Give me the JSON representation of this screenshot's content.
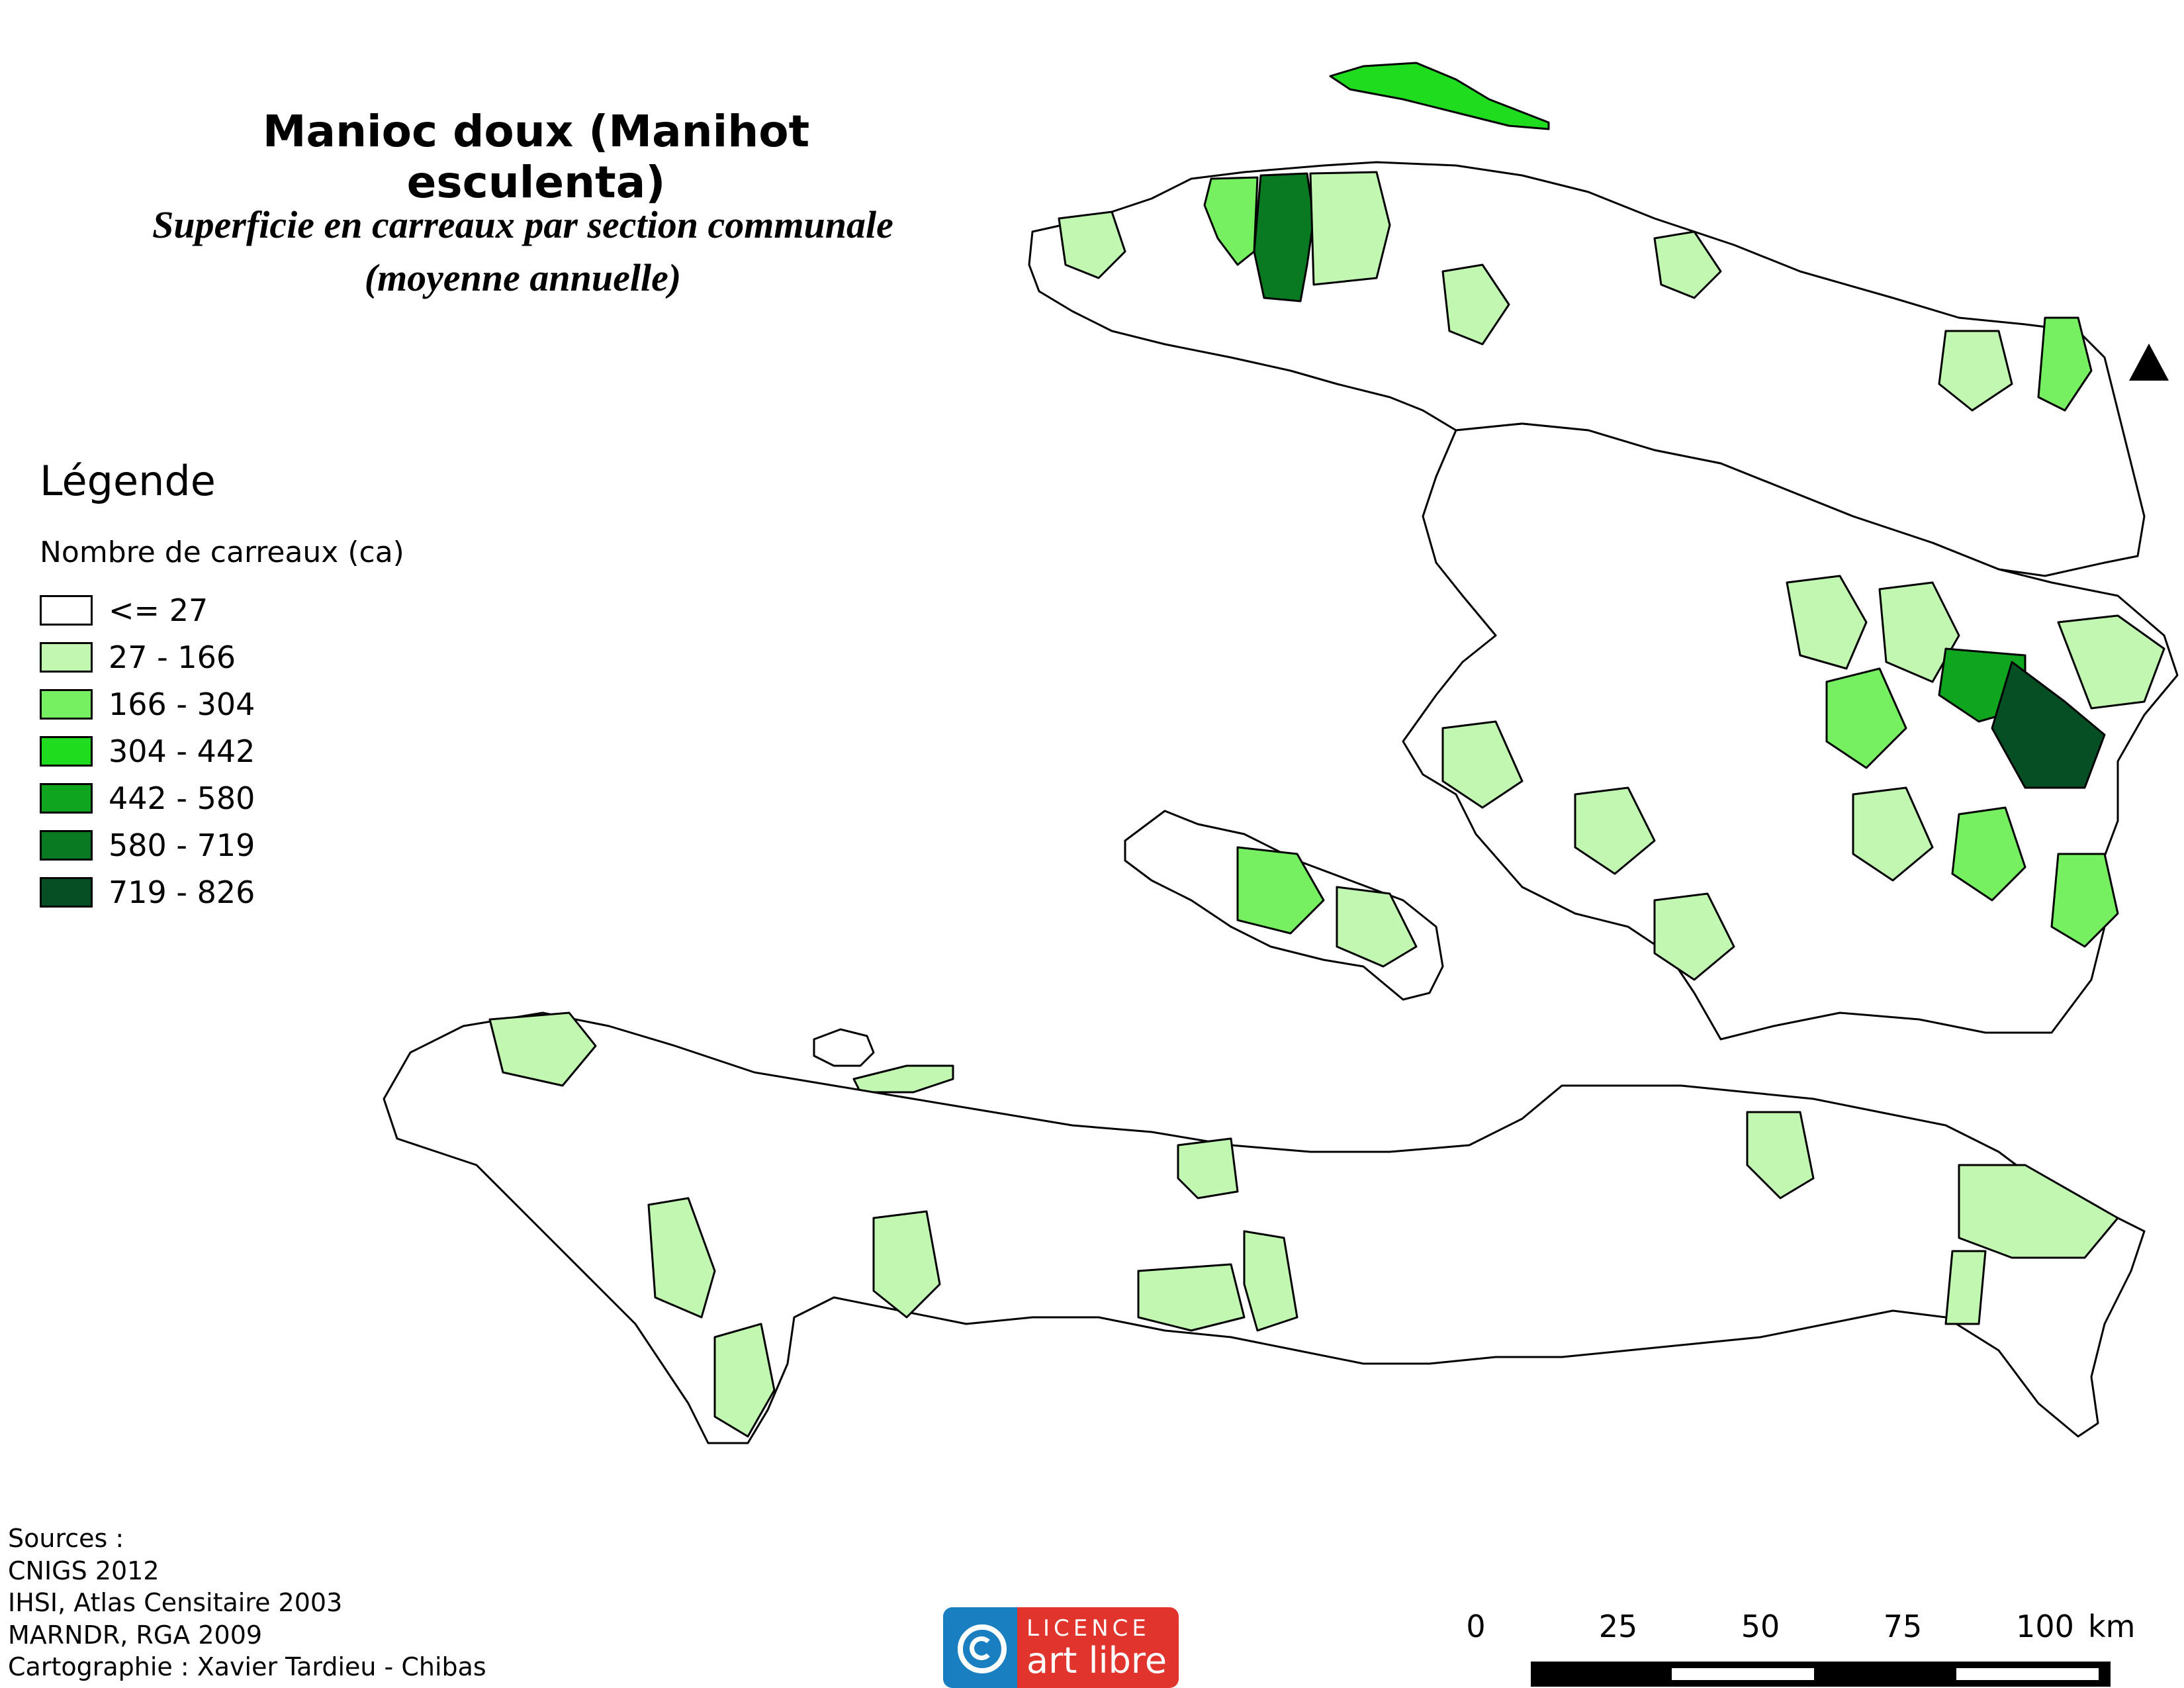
{
  "title": "Manioc doux (Manihot esculenta)",
  "subtitle": {
    "line1": "Superficie en carreaux par section communale",
    "line2": "(moyenne annuelle)"
  },
  "legend": {
    "title": "Légende",
    "subtitle": "Nombre de carreaux (ca)",
    "classes": [
      {
        "label": "<= 27",
        "color": "#ffffff"
      },
      {
        "label": "27 - 166",
        "color": "#c2f7b2"
      },
      {
        "label": "166 - 304",
        "color": "#76f060"
      },
      {
        "label": "304 - 442",
        "color": "#1fdc1f"
      },
      {
        "label": "442 - 580",
        "color": "#10a51f"
      },
      {
        "label": "580 - 719",
        "color": "#0a7a22"
      },
      {
        "label": "719 - 826",
        "color": "#064f24"
      }
    ]
  },
  "sources": {
    "heading": "Sources :",
    "lines": [
      "CNIGS 2012",
      "IHSI, Atlas Censitaire 2003",
      "MARNDR, RGA 2009",
      "Cartographie : Xavier Tardieu - Chibas"
    ]
  },
  "license": {
    "top": "LICENCE",
    "bottom": "art libre"
  },
  "scale": {
    "labels": [
      "0",
      "25",
      "50",
      "75",
      "100"
    ],
    "unit": "km"
  }
}
